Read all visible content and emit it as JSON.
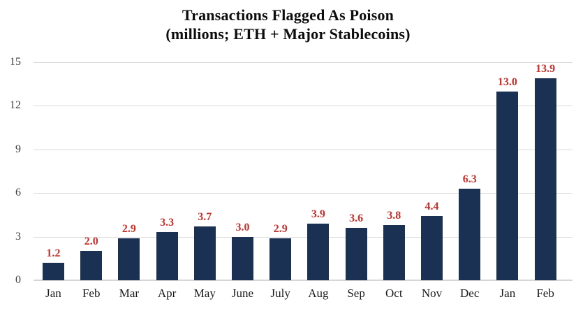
{
  "title": {
    "line1": "Transactions Flagged As Poison",
    "line2": "(millions; ETH + Major Stablecoins)"
  },
  "chart_data": {
    "type": "bar",
    "title": "Transactions Flagged As Poison (millions; ETH + Major Stablecoins)",
    "xlabel": "",
    "ylabel": "",
    "categories": [
      "Jan",
      "Feb",
      "Mar",
      "Apr",
      "May",
      "June",
      "July",
      "Aug",
      "Sep",
      "Oct",
      "Nov",
      "Dec",
      "Jan",
      "Feb"
    ],
    "values": [
      1.2,
      2.0,
      2.9,
      3.3,
      3.7,
      3.0,
      2.9,
      3.9,
      3.6,
      3.8,
      4.4,
      6.3,
      13.0,
      13.9
    ],
    "value_labels": [
      "1.2",
      "2.0",
      "2.9",
      "3.3",
      "3.7",
      "3.0",
      "2.9",
      "3.9",
      "3.6",
      "3.8",
      "4.4",
      "6.3",
      "13.0",
      "13.9"
    ],
    "ylim": [
      0,
      15
    ],
    "yticks": [
      0,
      3,
      6,
      9,
      12,
      15
    ],
    "grid": "horizontal",
    "legend": "none",
    "colors": {
      "bar": "#1a3154",
      "value_label": "#c7302b",
      "grid": "#d9d9d9",
      "tick_text": "#404040",
      "title_text": "#0d0d0d"
    }
  }
}
